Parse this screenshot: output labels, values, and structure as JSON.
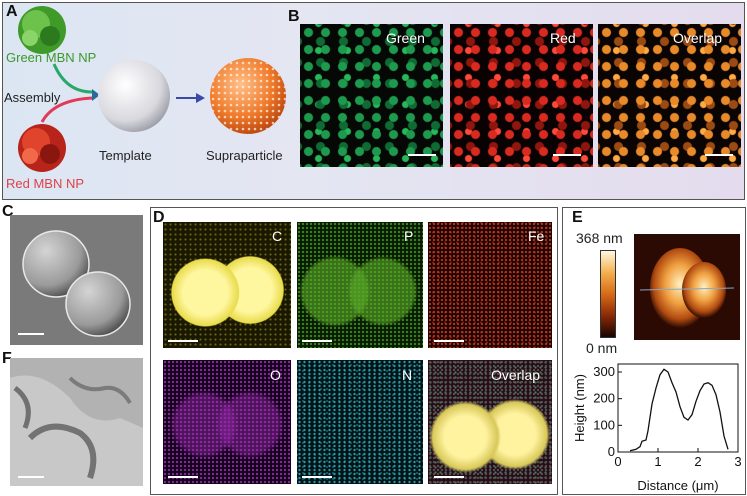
{
  "panels": {
    "A": {
      "label": "A",
      "green_np": "Green MBN NP",
      "assembly": "Assembly",
      "red_np": "Red MBN NP",
      "template": "Template",
      "supraparticle": "Supraparticle"
    },
    "B": {
      "label": "B",
      "tiles": [
        "Green",
        "Red",
        "Overlap"
      ]
    },
    "C": {
      "label": "C"
    },
    "D": {
      "label": "D",
      "tiles": [
        "C",
        "P",
        "Fe",
        "O",
        "N",
        "Overlap"
      ]
    },
    "E": {
      "label": "E",
      "colorbar_max": "368 nm",
      "colorbar_min": "0 nm"
    },
    "F": {
      "label": "F"
    }
  },
  "chart_data": {
    "type": "line",
    "xlabel": "Distance (μm)",
    "ylabel": "Height (nm)",
    "xlim": [
      0,
      3
    ],
    "ylim": [
      0,
      330
    ],
    "xticks": [
      "0",
      "1",
      "2",
      "3"
    ],
    "yticks": [
      "0",
      "100",
      "200",
      "300"
    ],
    "x": [
      0.3,
      0.45,
      0.55,
      0.6,
      0.7,
      0.75,
      0.85,
      0.95,
      1.05,
      1.15,
      1.25,
      1.35,
      1.45,
      1.55,
      1.65,
      1.75,
      1.85,
      1.95,
      2.05,
      2.15,
      2.25,
      2.35,
      2.45,
      2.55,
      2.65,
      2.75
    ],
    "series": [
      {
        "values": [
          5,
          10,
          20,
          40,
          45,
          80,
          180,
          240,
          290,
          310,
          300,
          260,
          225,
          170,
          130,
          120,
          140,
          190,
          230,
          255,
          260,
          250,
          215,
          150,
          60,
          10
        ]
      }
    ]
  }
}
